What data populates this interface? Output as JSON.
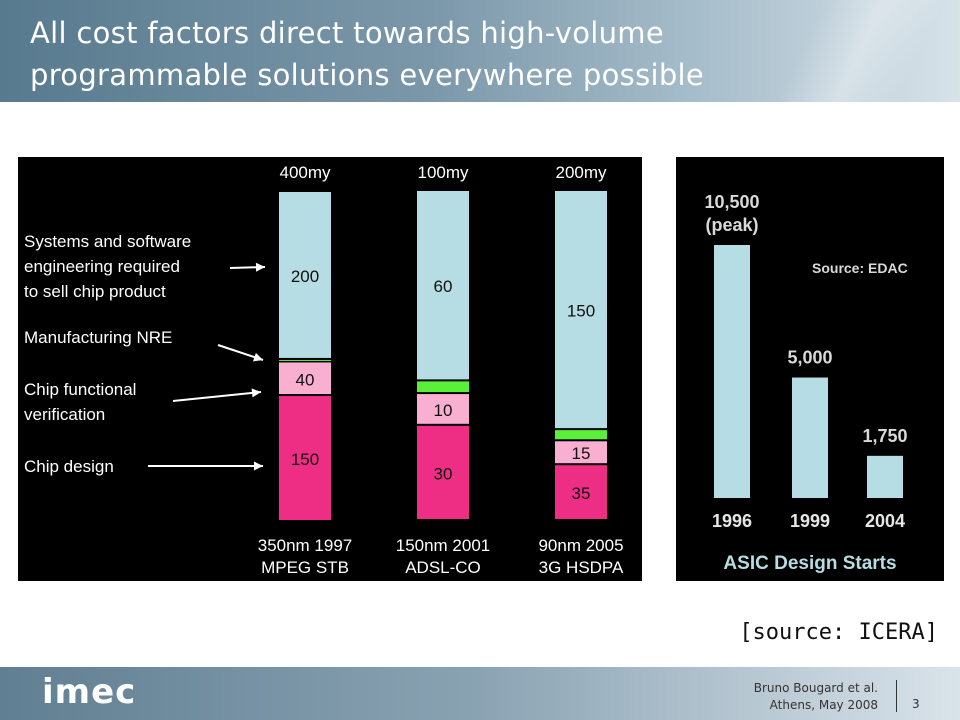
{
  "slide": {
    "title_line1": "All cost factors direct towards high-volume",
    "title_line2": "programmable solutions everywhere possible",
    "source": "[source: ICERA]",
    "footer_author": "Bruno Bougard et al.",
    "footer_place_date": "Athens, May 2008",
    "page_number": "3",
    "logo_text": "imec"
  },
  "chart_data": [
    {
      "type": "bar",
      "stacked": true,
      "categories": [
        "350nm 1997 MPEG STB",
        "150nm 2001 ADSL-CO",
        "90nm 2005 3G HSDPA"
      ],
      "category_lines": [
        [
          "350nm 1997",
          "MPEG STB"
        ],
        [
          "150nm 2001",
          "ADSL-CO"
        ],
        [
          "90nm 2005",
          "3G HSDPA"
        ]
      ],
      "totals": [
        "400my",
        "100my",
        "200my"
      ],
      "series": [
        {
          "name": "Chip design",
          "values": [
            150,
            30,
            35
          ],
          "labels": [
            "150",
            "30",
            "35"
          ],
          "color": "#ee2d85"
        },
        {
          "name": "Chip functional verification",
          "values": [
            40,
            10,
            15
          ],
          "labels": [
            "40",
            "10",
            "15"
          ],
          "color": "#f9b0d0"
        },
        {
          "name": "Manufacturing NRE",
          "values": [
            3,
            4,
            7
          ],
          "labels": [
            "",
            "",
            ""
          ],
          "color": "#5af03a"
        },
        {
          "name": "Systems and software engineering required to sell chip product",
          "values": [
            200,
            60,
            150
          ],
          "labels": [
            "200",
            "60",
            "150"
          ],
          "color": "#b6dde3"
        }
      ],
      "legend_labels": [
        [
          "Systems and software",
          "engineering required",
          "to sell chip product"
        ],
        [
          "Manufacturing NRE"
        ],
        [
          "Chip functional",
          "verification"
        ],
        [
          "Chip design"
        ]
      ]
    },
    {
      "type": "bar",
      "title": "ASIC Design Starts",
      "annotation": "Source: EDAC",
      "categories": [
        "1996",
        "1999",
        "2004"
      ],
      "values": [
        10500,
        5000,
        1750
      ],
      "labels": [
        [
          "10,500",
          "(peak)"
        ],
        [
          "5,000"
        ],
        [
          "1,750"
        ]
      ],
      "color": "#b6dde3"
    }
  ]
}
